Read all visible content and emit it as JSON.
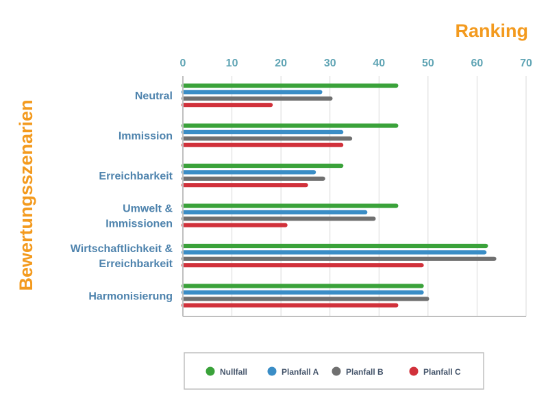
{
  "chart_data": {
    "type": "bar",
    "orientation": "horizontal",
    "xlabel": "Ranking",
    "ylabel": "Bewertungsszenarien",
    "xlim": [
      0,
      70
    ],
    "xticks": [
      "0",
      "10",
      "20",
      "30",
      "40",
      "50",
      "60",
      "70"
    ],
    "grid": true,
    "legend_position": "bottom",
    "categories": [
      [
        "Neutral"
      ],
      [
        "Immission"
      ],
      [
        "Erreichbarkeit"
      ],
      [
        "Umwelt &",
        "Immissionen"
      ],
      [
        "Wirtschaftlichkeit &",
        "Erreichbarkeit"
      ],
      [
        "Harmonisierung"
      ]
    ],
    "series": [
      {
        "name": "Nullfall",
        "color": "#3aa23a",
        "values": [
          43.5,
          43.5,
          32.3,
          43.5,
          61.8,
          48.7
        ]
      },
      {
        "name": "Planfall A",
        "color": "#3a8dc6",
        "values": [
          28.0,
          32.3,
          26.7,
          37.2,
          61.5,
          48.7
        ]
      },
      {
        "name": "Planfall B",
        "color": "#707070",
        "values": [
          30.1,
          34.1,
          28.6,
          38.9,
          63.5,
          49.8
        ]
      },
      {
        "name": "Planfall C",
        "color": "#d1313b",
        "values": [
          17.9,
          32.3,
          25.1,
          20.9,
          48.7,
          43.5
        ]
      }
    ],
    "colors": {
      "title": "#f39a1e",
      "tick": "#5fa4b4",
      "category": "#4e83ad",
      "grid": "#d9d9d9",
      "axis": "#bfbfbf",
      "legend_border": "#bfbfbf"
    }
  }
}
